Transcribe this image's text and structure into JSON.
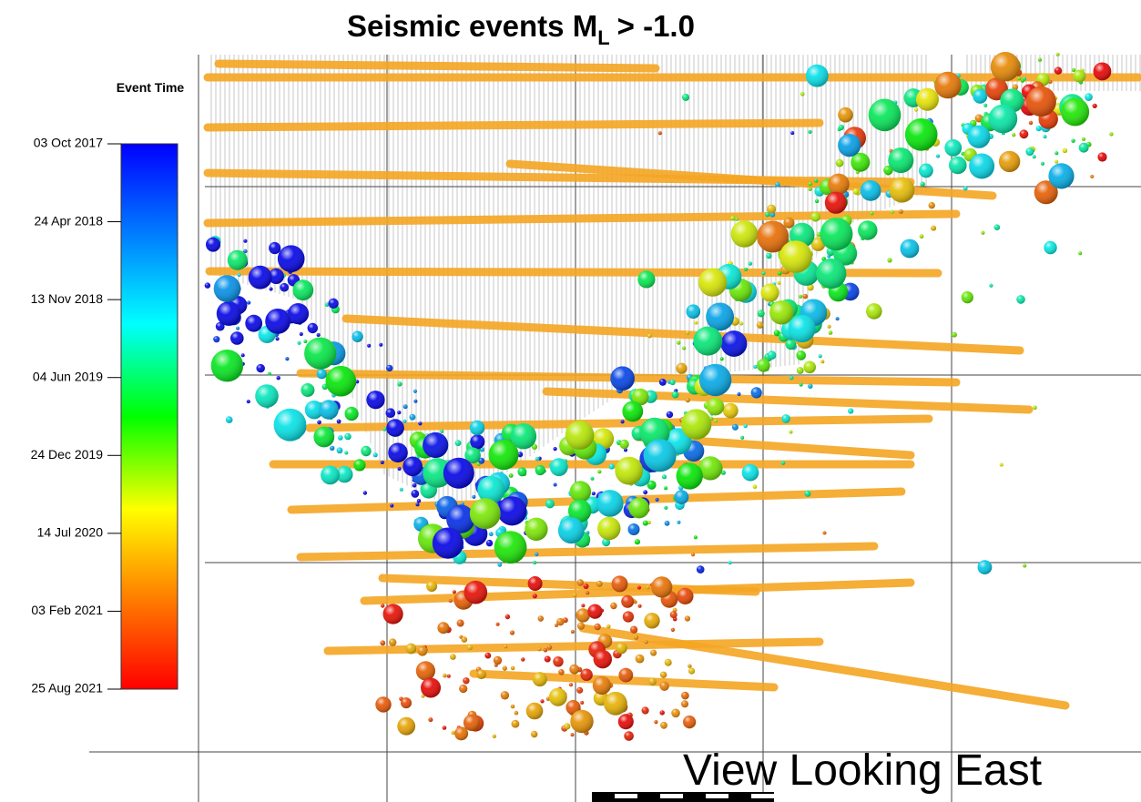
{
  "title": {
    "text": "Seismic events M",
    "subscript": "L",
    "suffix": "> -1.0"
  },
  "colorbar": {
    "label": "Event Time",
    "ticks": [
      "03 Oct 2017",
      "24 Apr 2018",
      "13 Nov 2018",
      "04 Jun 2019",
      "24 Dec 2019",
      "14 Jul 2020",
      "03 Feb 2021",
      "25 Aug 2021"
    ]
  },
  "view_label": "View Looking East"
}
